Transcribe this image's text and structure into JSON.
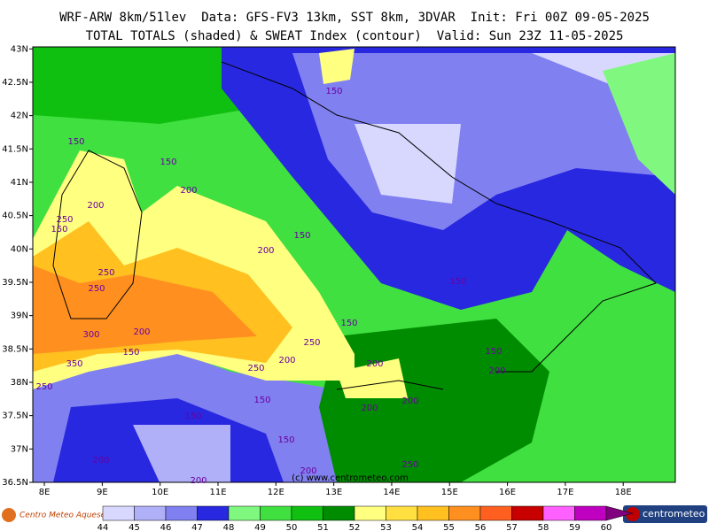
{
  "header": {
    "title": "WRF-ARW 8km/51lev  Data: GFS-FV3 13km, SST 8km, 3DVAR  Init: Fri 00Z 09-05-2025",
    "subtitle": "TOTAL TOTALS (shaded) & SWEAT Index (contour)  Valid: Sun 23Z 11-05-2025"
  },
  "map": {
    "xlim": [
      7.8,
      18.9
    ],
    "ylim": [
      36.5,
      43.03
    ],
    "xticks": [
      {
        "value": 8,
        "label": "8E"
      },
      {
        "value": 9,
        "label": "9E"
      },
      {
        "value": 10,
        "label": "10E"
      },
      {
        "value": 11,
        "label": "11E"
      },
      {
        "value": 12,
        "label": "12E"
      },
      {
        "value": 13,
        "label": "13E"
      },
      {
        "value": 14,
        "label": "14E"
      },
      {
        "value": 15,
        "label": "15E"
      },
      {
        "value": 16,
        "label": "16E"
      },
      {
        "value": 17,
        "label": "17E"
      },
      {
        "value": 18,
        "label": "18E"
      }
    ],
    "yticks": [
      {
        "value": 43,
        "label": "43N"
      },
      {
        "value": 42.5,
        "label": "42.5N"
      },
      {
        "value": 42,
        "label": "42N"
      },
      {
        "value": 41.5,
        "label": "41.5N"
      },
      {
        "value": 41,
        "label": "41N"
      },
      {
        "value": 40.5,
        "label": "40.5N"
      },
      {
        "value": 40,
        "label": "40N"
      },
      {
        "value": 39.5,
        "label": "39.5N"
      },
      {
        "value": 39,
        "label": "39N"
      },
      {
        "value": 38.5,
        "label": "38.5N"
      },
      {
        "value": 38,
        "label": "38N"
      },
      {
        "value": 37.5,
        "label": "37.5N"
      },
      {
        "value": 37,
        "label": "37N"
      },
      {
        "value": 36.5,
        "label": "36.5N"
      }
    ],
    "contour_labels": [
      "150",
      "150",
      "150",
      "200",
      "200",
      "250",
      "150",
      "150",
      "200",
      "250",
      "250",
      "150",
      "300",
      "200",
      "150",
      "250",
      "150",
      "350",
      "200",
      "250",
      "200",
      "150",
      "200",
      "250",
      "200",
      "200",
      "150",
      "150",
      "150",
      "200",
      "200",
      "250",
      "200"
    ],
    "copyright": "(c) www.centrometeo.com"
  },
  "colorbar": {
    "ticks": [
      44,
      45,
      46,
      47,
      48,
      49,
      50,
      51,
      52,
      53,
      54,
      55,
      56,
      57,
      58,
      59,
      60
    ],
    "colors": [
      "#d8d8ff",
      "#b0b0f8",
      "#8080f0",
      "#2828e0",
      "#80f880",
      "#40e040",
      "#10c010",
      "#008c00",
      "#ffff80",
      "#ffe040",
      "#ffc020",
      "#ff9020",
      "#ff6020",
      "#c80000",
      "#ff60ff",
      "#c000c0",
      "#800080"
    ]
  },
  "logos": {
    "left": "Centro Meteo Aquese",
    "right": "centrometeo"
  }
}
